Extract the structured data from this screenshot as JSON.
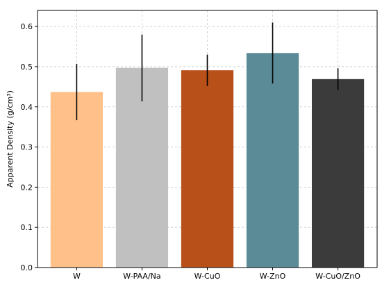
{
  "chart_data": {
    "type": "bar",
    "title": "",
    "xlabel": "",
    "ylabel": "Apparent Density (g/cm³)",
    "categories": [
      "W",
      "W-PAA/Na",
      "W-CuO",
      "W-ZnO",
      "W-CuO/ZnO"
    ],
    "values": [
      0.437,
      0.497,
      0.491,
      0.534,
      0.469
    ],
    "errors": [
      0.07,
      0.083,
      0.039,
      0.076,
      0.027
    ],
    "colors": [
      "#FFC08A",
      "#C0C0C0",
      "#B85019",
      "#5B8B96",
      "#3B3B3B"
    ],
    "ylim": [
      0,
      0.64
    ],
    "yticks": [
      "0.0",
      "0.1",
      "0.2",
      "0.3",
      "0.4",
      "0.5",
      "0.6"
    ],
    "grid": true,
    "error_bar_color": "#000000"
  }
}
